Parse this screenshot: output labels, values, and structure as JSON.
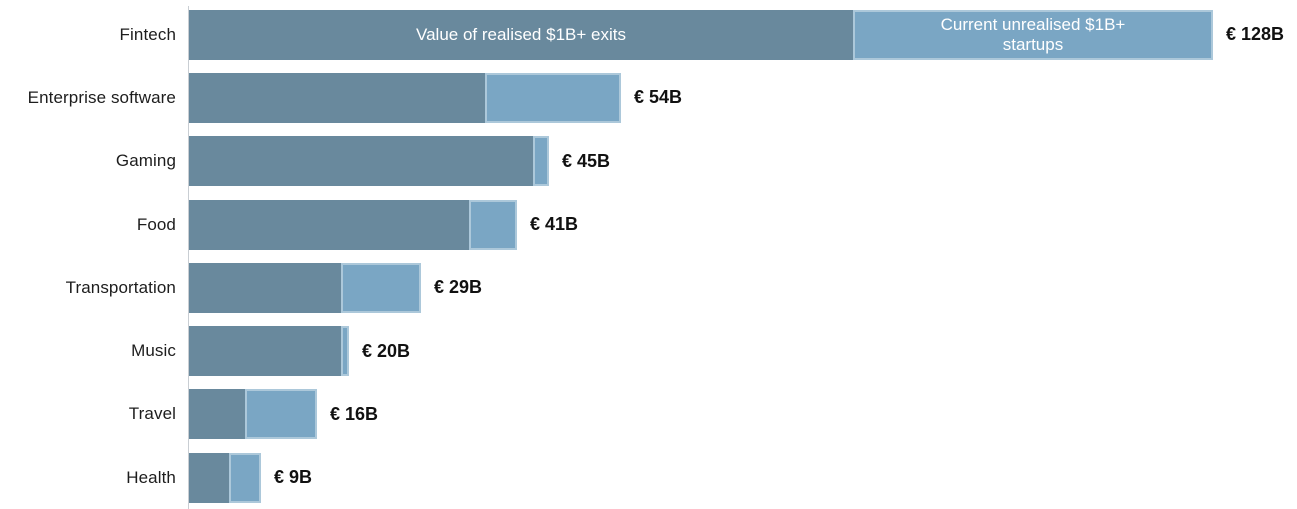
{
  "chart_data": {
    "type": "bar",
    "orientation": "horizontal",
    "stacked": true,
    "grid": false,
    "legend_position": "inline-first-bar",
    "unit": "€B",
    "categories": [
      "Fintech",
      "Enterprise software",
      "Gaming",
      "Food",
      "Transportation",
      "Music",
      "Travel",
      "Health"
    ],
    "series": [
      {
        "name": "Value of realised $1B+ exits",
        "color": "#69899d",
        "values": [
          83,
          37,
          43,
          35,
          19,
          19,
          7,
          5
        ]
      },
      {
        "name": "Current unrealised $1B+ startups",
        "color": "#7aa6c4",
        "values": [
          45,
          17,
          2,
          6,
          10,
          1,
          9,
          4
        ]
      }
    ],
    "totals": [
      128,
      54,
      45,
      41,
      29,
      20,
      16,
      9
    ],
    "total_labels": [
      "€ 128B",
      "€ 54B",
      "€ 45B",
      "€ 41B",
      "€ 29B",
      "€ 20B",
      "€ 16B",
      "€ 9B"
    ],
    "xlim": [
      0,
      138
    ]
  },
  "colors": {
    "realised_segment": "#69899d",
    "unrealised_segment": "#7aa6c4",
    "axis_line": "#c9ced3",
    "category_text": "#1d1d1d",
    "value_text": "#111111",
    "inbar_text": "#ffffff",
    "background": "#ffffff"
  }
}
